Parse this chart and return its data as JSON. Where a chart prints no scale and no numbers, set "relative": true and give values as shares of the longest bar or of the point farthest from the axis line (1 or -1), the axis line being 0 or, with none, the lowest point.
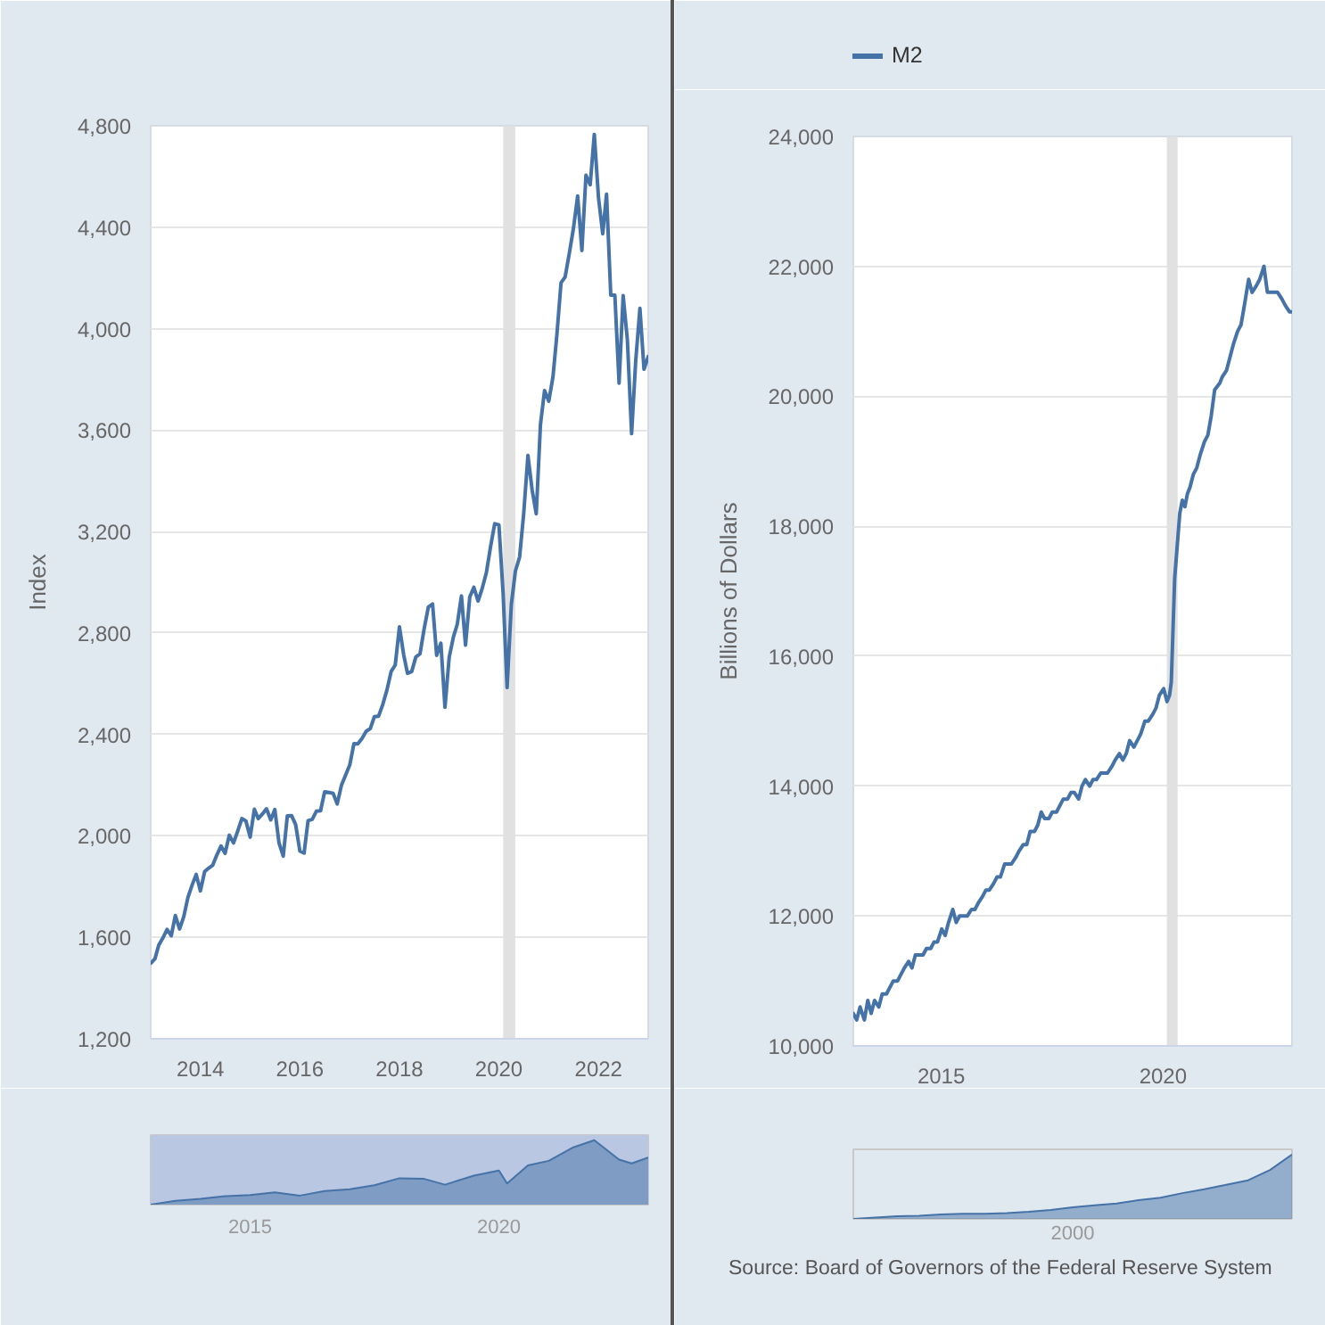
{
  "chart_data": [
    {
      "type": "line",
      "ylabel": "Index",
      "grid": "y",
      "xlim": [
        "2013-01",
        "2023-01"
      ],
      "xticks": [
        "2014",
        "2016",
        "2018",
        "2020",
        "2022"
      ],
      "ylim": [
        1200,
        4800
      ],
      "yticks": [
        {
          "value": 1200,
          "label": "1,200"
        },
        {
          "value": 1600,
          "label": "1,600"
        },
        {
          "value": 2000,
          "label": "2,000"
        },
        {
          "value": 2400,
          "label": "2,400"
        },
        {
          "value": 2800,
          "label": "2,800"
        },
        {
          "value": 3200,
          "label": "3,200"
        },
        {
          "value": 3600,
          "label": "3,600"
        },
        {
          "value": 4000,
          "label": "4,000"
        },
        {
          "value": 4400,
          "label": "4,400"
        },
        {
          "value": 4800,
          "label": "4,800"
        }
      ],
      "bands": [
        {
          "axis": "x",
          "from": "2020-02",
          "to": "2020-04-30",
          "color": "#e1e1e1"
        }
      ],
      "series": [
        {
          "color": "#4572a7",
          "x": [
            "2013-01",
            "2013-02",
            "2013-03",
            "2013-04",
            "2013-05",
            "2013-06",
            "2013-07",
            "2013-08",
            "2013-09",
            "2013-10",
            "2013-11",
            "2013-12",
            "2014-01",
            "2014-02",
            "2014-03",
            "2014-04",
            "2014-05",
            "2014-06",
            "2014-07",
            "2014-08",
            "2014-09",
            "2014-10",
            "2014-11",
            "2014-12",
            "2015-01",
            "2015-02",
            "2015-03",
            "2015-04",
            "2015-05",
            "2015-06",
            "2015-07",
            "2015-08",
            "2015-09",
            "2015-10",
            "2015-11",
            "2015-12",
            "2016-01",
            "2016-02",
            "2016-03",
            "2016-04",
            "2016-05",
            "2016-06",
            "2016-07",
            "2016-08",
            "2016-09",
            "2016-10",
            "2016-11",
            "2016-12",
            "2017-01",
            "2017-02",
            "2017-03",
            "2017-04",
            "2017-05",
            "2017-06",
            "2017-07",
            "2017-08",
            "2017-09",
            "2017-10",
            "2017-11",
            "2017-12",
            "2018-01",
            "2018-02",
            "2018-03",
            "2018-04",
            "2018-05",
            "2018-06",
            "2018-07",
            "2018-08",
            "2018-09",
            "2018-10",
            "2018-11",
            "2018-12",
            "2019-01",
            "2019-02",
            "2019-03",
            "2019-04",
            "2019-05",
            "2019-06",
            "2019-07",
            "2019-08",
            "2019-09",
            "2019-10",
            "2019-11",
            "2019-12",
            "2020-01",
            "2020-02",
            "2020-03",
            "2020-04",
            "2020-05",
            "2020-06",
            "2020-07",
            "2020-08",
            "2020-09",
            "2020-10",
            "2020-11",
            "2020-12",
            "2021-01",
            "2021-02",
            "2021-03",
            "2021-04",
            "2021-05",
            "2021-06",
            "2021-07",
            "2021-08",
            "2021-09",
            "2021-10",
            "2021-11",
            "2021-12",
            "2022-01",
            "2022-02",
            "2022-03",
            "2022-04",
            "2022-05",
            "2022-06",
            "2022-07",
            "2022-08",
            "2022-09",
            "2022-10",
            "2022-11",
            "2022-12",
            "2023-01"
          ],
          "values": [
            1498,
            1515,
            1569,
            1598,
            1631,
            1606,
            1686,
            1633,
            1682,
            1757,
            1806,
            1848,
            1783,
            1859,
            1872,
            1884,
            1924,
            1960,
            1931,
            2003,
            1972,
            2018,
            2068,
            2059,
            1995,
            2105,
            2068,
            2086,
            2107,
            2063,
            2104,
            1972,
            1920,
            2079,
            2080,
            2044,
            1940,
            1932,
            2060,
            2065,
            2097,
            2099,
            2174,
            2171,
            2168,
            2126,
            2199,
            2239,
            2279,
            2364,
            2363,
            2384,
            2412,
            2423,
            2470,
            2472,
            2519,
            2575,
            2648,
            2674,
            2824,
            2714,
            2641,
            2648,
            2705,
            2718,
            2816,
            2902,
            2914,
            2712,
            2760,
            2507,
            2704,
            2784,
            2834,
            2946,
            2752,
            2942,
            2980,
            2926,
            2977,
            3038,
            3141,
            3231,
            3226,
            2954,
            2585,
            2912,
            3044,
            3100,
            3271,
            3500,
            3363,
            3270,
            3622,
            3756,
            3714,
            3811,
            3973,
            4181,
            4204,
            4298,
            4395,
            4523,
            4308,
            4605,
            4567,
            4766,
            4516,
            4374,
            4530,
            4132,
            4132,
            3785,
            4130,
            3955,
            3586,
            3872,
            4080,
            3840,
            3890
          ]
        }
      ]
    },
    {
      "type": "area",
      "relative": true,
      "tick_labels": "x",
      "xlim": [
        "2013-01",
        "2023-01"
      ],
      "xticks": [
        "2015",
        "2020"
      ],
      "bands": [
        {
          "axis": "x",
          "from": "2013-01",
          "to": "2023-01",
          "color": "#b9c7e3"
        }
      ],
      "series": [
        {
          "color": "#4572a7",
          "x": [
            "2013-01",
            "2013-07",
            "2014-01",
            "2014-07",
            "2015-01",
            "2015-07",
            "2016-01",
            "2016-07",
            "2017-01",
            "2017-07",
            "2018-01",
            "2018-07",
            "2018-12",
            "2019-07",
            "2020-01",
            "2020-03",
            "2020-08",
            "2021-01",
            "2021-07",
            "2021-12",
            "2022-06",
            "2022-09",
            "2023-01"
          ],
          "values": [
            0,
            0.06,
            0.09,
            0.13,
            0.15,
            0.19,
            0.14,
            0.21,
            0.24,
            0.3,
            0.41,
            0.4,
            0.31,
            0.45,
            0.53,
            0.33,
            0.61,
            0.68,
            0.89,
            1,
            0.7,
            0.64,
            0.73
          ]
        }
      ]
    },
    {
      "type": "line",
      "ylabel": "Billions of Dollars",
      "grid": "y",
      "legend": "top left",
      "xlim": [
        "2013-01-07",
        "2022-11-28"
      ],
      "xticks": [
        "2015",
        "2020"
      ],
      "ylim": [
        10000,
        24000
      ],
      "yticks": [
        {
          "value": 10000,
          "label": "10,000"
        },
        {
          "value": 12000,
          "label": "12,000"
        },
        {
          "value": 14000,
          "label": "14,000"
        },
        {
          "value": 16000,
          "label": "16,000"
        },
        {
          "value": 18000,
          "label": "18,000"
        },
        {
          "value": 20000,
          "label": "20,000"
        },
        {
          "value": 22000,
          "label": "22,000"
        },
        {
          "value": 24000,
          "label": "24,000"
        }
      ],
      "bands": [
        {
          "axis": "x",
          "from": "2020-02",
          "to": "2020-04-30",
          "color": "#e1e1e1"
        }
      ],
      "series": [
        {
          "name": "M2",
          "color": "#4572a7",
          "x": [
            "2013-01-07",
            "2013-02-04",
            "2013-03-04",
            "2013-04-08",
            "2013-05-06",
            "2013-06-03",
            "2013-07-01",
            "2013-08-05",
            "2013-09-02",
            "2013-10-07",
            "2013-11-04",
            "2013-12-02",
            "2014-01-06",
            "2014-02-03",
            "2014-03-03",
            "2014-04-07",
            "2014-05-05",
            "2014-06-02",
            "2014-07-07",
            "2014-08-04",
            "2014-09-01",
            "2014-10-06",
            "2014-11-03",
            "2014-12-01",
            "2015-01-05",
            "2015-02-02",
            "2015-03-02",
            "2015-04-06",
            "2015-05-04",
            "2015-06-01",
            "2015-07-06",
            "2015-08-03",
            "2015-09-07",
            "2015-10-05",
            "2015-11-02",
            "2015-12-07",
            "2016-01-04",
            "2016-02-01",
            "2016-03-07",
            "2016-04-04",
            "2016-05-02",
            "2016-06-06",
            "2016-07-04",
            "2016-08-01",
            "2016-09-05",
            "2016-10-03",
            "2016-11-07",
            "2016-12-05",
            "2017-01-02",
            "2017-02-06",
            "2017-03-06",
            "2017-04-03",
            "2017-05-01",
            "2017-06-05",
            "2017-07-03",
            "2017-08-07",
            "2017-09-04",
            "2017-10-02",
            "2017-11-06",
            "2017-12-04",
            "2018-01-01",
            "2018-02-05",
            "2018-03-05",
            "2018-04-02",
            "2018-05-07",
            "2018-06-04",
            "2018-07-02",
            "2018-08-06",
            "2018-09-03",
            "2018-10-01",
            "2018-11-05",
            "2018-12-03",
            "2019-01-07",
            "2019-02-04",
            "2019-03-04",
            "2019-04-01",
            "2019-05-06",
            "2019-06-03",
            "2019-07-01",
            "2019-08-05",
            "2019-09-02",
            "2019-10-07",
            "2019-11-04",
            "2019-12-02",
            "2020-01-06",
            "2020-02-03",
            "2020-02-24",
            "2020-03-09",
            "2020-03-23",
            "2020-04-06",
            "2020-04-27",
            "2020-05-18",
            "2020-06-08",
            "2020-06-29",
            "2020-07-20",
            "2020-08-10",
            "2020-09-07",
            "2020-10-05",
            "2020-11-02",
            "2020-12-07",
            "2021-01-04",
            "2021-02-01",
            "2021-03-01",
            "2021-04-12",
            "2021-05-03",
            "2021-06-07",
            "2021-07-05",
            "2021-08-02",
            "2021-09-06",
            "2021-10-04",
            "2021-11-01",
            "2021-12-06",
            "2022-01-03",
            "2022-02-07",
            "2022-03-07",
            "2022-04-11",
            "2022-05-09",
            "2022-06-06",
            "2022-07-04",
            "2022-08-01",
            "2022-09-05",
            "2022-10-03",
            "2022-11-07",
            "2022-11-28"
          ],
          "values": [
            10500,
            10400,
            10600,
            10400,
            10700,
            10500,
            10700,
            10600,
            10800,
            10800,
            10900,
            11000,
            11000,
            11100,
            11200,
            11300,
            11200,
            11400,
            11400,
            11400,
            11500,
            11500,
            11600,
            11600,
            11800,
            11700,
            11900,
            12100,
            11900,
            12000,
            12000,
            12000,
            12100,
            12100,
            12200,
            12300,
            12400,
            12400,
            12500,
            12600,
            12600,
            12800,
            12800,
            12800,
            12900,
            13000,
            13100,
            13100,
            13300,
            13300,
            13400,
            13600,
            13500,
            13500,
            13600,
            13600,
            13700,
            13800,
            13800,
            13900,
            13900,
            13800,
            14000,
            14100,
            14000,
            14100,
            14100,
            14200,
            14200,
            14200,
            14300,
            14400,
            14500,
            14400,
            14500,
            14700,
            14600,
            14700,
            14800,
            15000,
            15000,
            15100,
            15200,
            15400,
            15500,
            15300,
            15400,
            15600,
            16400,
            17200,
            17700,
            18200,
            18400,
            18300,
            18500,
            18600,
            18800,
            18900,
            19100,
            19300,
            19400,
            19700,
            20100,
            20200,
            20300,
            20400,
            20600,
            20800,
            21000,
            21100,
            21400,
            21800,
            21600,
            21700,
            21800,
            22000,
            21600,
            21600,
            21600,
            21600,
            21500,
            21400,
            21300,
            21300
          ]
        }
      ]
    },
    {
      "type": "area",
      "relative": true,
      "categories": [
        null,
        null,
        null,
        null,
        null,
        null,
        null,
        null,
        null,
        null,
        null,
        null,
        null,
        null,
        null,
        null,
        null,
        null,
        null,
        null,
        null
      ],
      "values": [
        0,
        0.02,
        0.04,
        0.05,
        0.07,
        0.08,
        0.08,
        0.09,
        0.11,
        0.14,
        0.18,
        0.21,
        0.24,
        0.29,
        0.33,
        0.4,
        0.46,
        0.53,
        0.6,
        0.76,
        1
      ],
      "color": "#4572a7",
      "annotations": [
        "2000",
        "Source: Board of Governors of the Federal Reserve System"
      ]
    }
  ]
}
